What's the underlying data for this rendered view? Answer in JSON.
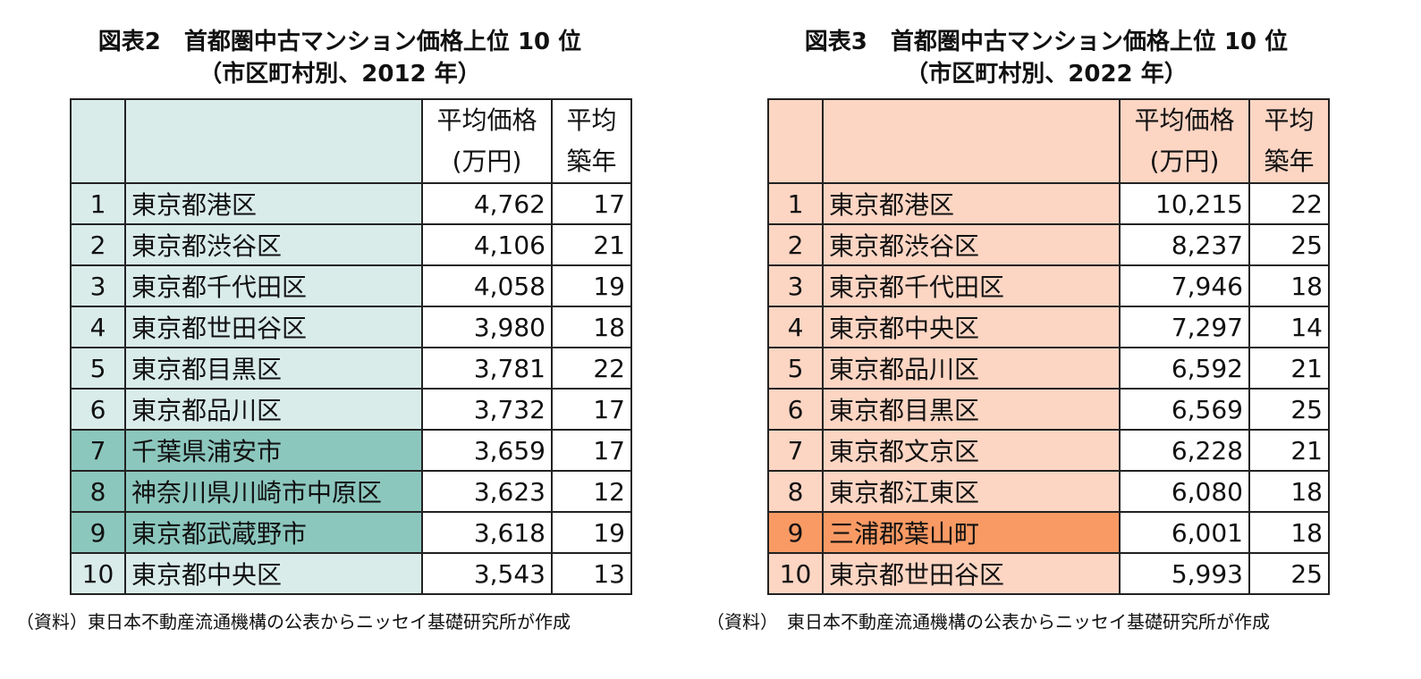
{
  "left": {
    "title_line1": "図表2　首都圏中古マンション価格上位 10 位",
    "title_line2": "（市区町村別、2012 年）",
    "header": {
      "price_line1": "平均価格",
      "price_line2": "(万円)",
      "age_line1": "平均",
      "age_line2": "築年"
    },
    "rows": [
      {
        "rank": "1",
        "name": "東京都港区",
        "price": "4,762",
        "age": "17",
        "highlight": "tinted"
      },
      {
        "rank": "2",
        "name": "東京都渋谷区",
        "price": "4,106",
        "age": "21",
        "highlight": "tinted"
      },
      {
        "rank": "3",
        "name": "東京都千代田区",
        "price": "4,058",
        "age": "19",
        "highlight": "tinted"
      },
      {
        "rank": "4",
        "name": "東京都世田谷区",
        "price": "3,980",
        "age": "18",
        "highlight": "tinted"
      },
      {
        "rank": "5",
        "name": "東京都目黒区",
        "price": "3,781",
        "age": "22",
        "highlight": "tinted"
      },
      {
        "rank": "6",
        "name": "東京都品川区",
        "price": "3,732",
        "age": "17",
        "highlight": "tinted"
      },
      {
        "rank": "7",
        "name": "千葉県浦安市",
        "price": "3,659",
        "age": "17",
        "highlight": "strong"
      },
      {
        "rank": "8",
        "name": "神奈川県川崎市中原区",
        "price": "3,623",
        "age": "12",
        "highlight": "strong"
      },
      {
        "rank": "9",
        "name": "東京都武蔵野市",
        "price": "3,618",
        "age": "19",
        "highlight": "strong"
      },
      {
        "rank": "10",
        "name": "東京都中央区",
        "price": "3,543",
        "age": "13",
        "highlight": "tinted"
      }
    ],
    "source": "（資料）東日本不動産流通機構の公表からニッセイ基礎研究所が作成",
    "colors": {
      "tinted": "#d9ecea",
      "strong": "#8cc7be"
    }
  },
  "right": {
    "title_line1": "図表3　首都圏中古マンション価格上位 10 位",
    "title_line2": "（市区町村別、2022 年）",
    "header": {
      "price_line1": "平均価格",
      "price_line2": "(万円)",
      "age_line1": "平均",
      "age_line2": "築年"
    },
    "rows": [
      {
        "rank": "1",
        "name": "東京都港区",
        "price": "10,215",
        "age": "22",
        "highlight": "tinted"
      },
      {
        "rank": "2",
        "name": "東京都渋谷区",
        "price": "8,237",
        "age": "25",
        "highlight": "tinted"
      },
      {
        "rank": "3",
        "name": "東京都千代田区",
        "price": "7,946",
        "age": "18",
        "highlight": "tinted"
      },
      {
        "rank": "4",
        "name": "東京都中央区",
        "price": "7,297",
        "age": "14",
        "highlight": "tinted"
      },
      {
        "rank": "5",
        "name": "東京都品川区",
        "price": "6,592",
        "age": "21",
        "highlight": "tinted"
      },
      {
        "rank": "6",
        "name": "東京都目黒区",
        "price": "6,569",
        "age": "25",
        "highlight": "tinted"
      },
      {
        "rank": "7",
        "name": "東京都文京区",
        "price": "6,228",
        "age": "21",
        "highlight": "tinted"
      },
      {
        "rank": "8",
        "name": "東京都江東区",
        "price": "6,080",
        "age": "18",
        "highlight": "tinted"
      },
      {
        "rank": "9",
        "name": "三浦郡葉山町",
        "price": "6,001",
        "age": "18",
        "highlight": "strong"
      },
      {
        "rank": "10",
        "name": "東京都世田谷区",
        "price": "5,993",
        "age": "25",
        "highlight": "tinted"
      }
    ],
    "source": "（資料）　東日本不動産流通機構の公表からニッセイ基礎研究所が作成",
    "colors": {
      "tinted": "#fcd5c3",
      "strong": "#f99a64"
    }
  }
}
